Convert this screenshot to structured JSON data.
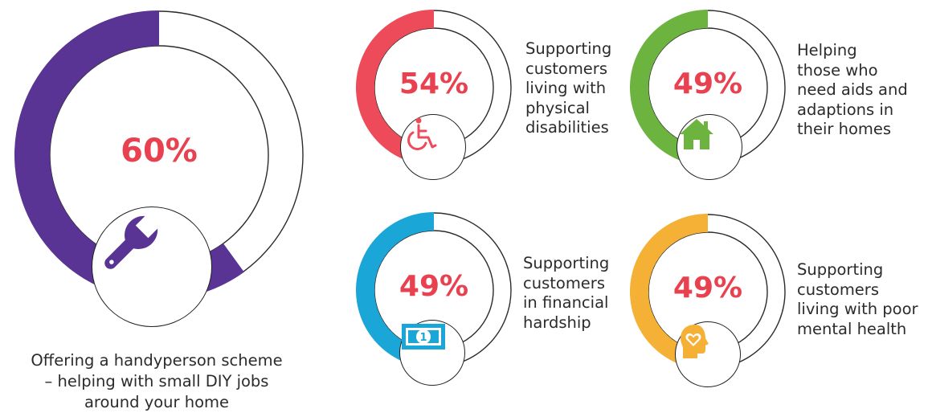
{
  "chart_data": [
    {
      "type": "donut",
      "value": 60,
      "value_label": "60%",
      "caption": "Offering a handyperson scheme – helping with small DIY jobs around your home",
      "color": "#5a3494",
      "icon": "wrench-icon"
    },
    {
      "type": "donut",
      "value": 54,
      "value_label": "54%",
      "caption_lines": [
        "Supporting",
        "customers",
        "living with",
        "physical",
        "disabilities"
      ],
      "color": "#ee4b5a",
      "icon": "wheelchair-icon"
    },
    {
      "type": "donut",
      "value": 49,
      "value_label": "49%",
      "caption_lines": [
        "Helping",
        "those who",
        "need aids and",
        "adaptions in",
        "their homes"
      ],
      "color": "#6db33f",
      "icon": "house-icon"
    },
    {
      "type": "donut",
      "value": 49,
      "value_label": "49%",
      "caption_lines": [
        "Supporting",
        "customers",
        "in financial",
        "hardship"
      ],
      "color": "#1aa7d8",
      "icon": "banknote-icon"
    },
    {
      "type": "donut",
      "value": 49,
      "value_label": "49%",
      "caption_lines": [
        "Supporting",
        "customers",
        "living with poor",
        "mental health"
      ],
      "color": "#f5b135",
      "icon": "head-heart-icon"
    }
  ],
  "main_caption": {
    "line1": "Offering a handyperson scheme",
    "line2": "– helping with small DIY jobs",
    "line3": "around your home"
  }
}
